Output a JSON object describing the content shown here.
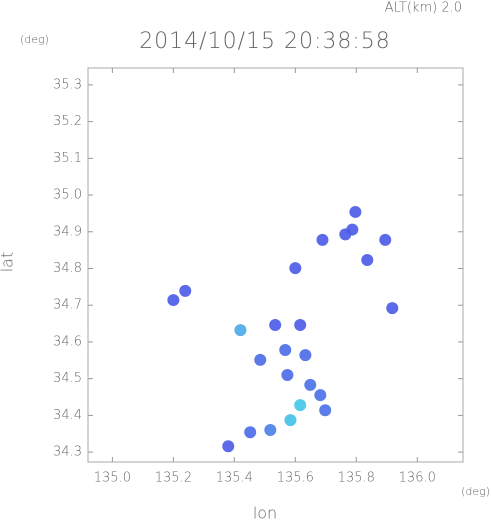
{
  "chart_data": {
    "type": "scatter",
    "title": "2014/10/15 20:38:58",
    "subtitle": "ALT(km) 2.0",
    "y_unit": "(deg)",
    "x_unit": "(deg)",
    "x_label": "lon",
    "y_label": "lat",
    "xlim": [
      134.92,
      136.15
    ],
    "ylim": [
      34.273,
      35.346
    ],
    "xticks": [
      {
        "value": 135,
        "label": "135.0"
      },
      135.2,
      135.4,
      135.6,
      135.8,
      {
        "value": 136,
        "label": "136.0"
      }
    ],
    "yticks": [
      34.3,
      34.4,
      34.5,
      34.6,
      34.7,
      34.8,
      34.9,
      {
        "value": 35,
        "label": "35.0"
      },
      35.1,
      35.2,
      35.3
    ],
    "x": [
      135.797,
      135.787,
      135.764,
      135.895,
      135.836,
      135.689,
      135.918,
      135.239,
      135.2,
      135.6,
      135.42,
      135.534,
      135.616,
      135.567,
      135.574,
      135.649,
      135.682,
      135.616,
      135.584,
      135.518,
      135.452,
      135.38,
      135.485,
      135.698,
      135.633
    ],
    "values": [
      34.954,
      34.906,
      34.893,
      34.878,
      34.823,
      34.878,
      34.692,
      34.739,
      34.714,
      34.801,
      34.632,
      34.646,
      34.646,
      34.578,
      34.51,
      34.483,
      34.455,
      34.428,
      34.387,
      34.36,
      34.354,
      34.316,
      34.551,
      34.414,
      34.564
    ],
    "colors": [
      "#4a5ae8",
      "#4a5ae8",
      "#4a5ae8",
      "#4a5ae8",
      "#4a5ae8",
      "#4a5ae8",
      "#4a5ae8",
      "#4a5ae8",
      "#4a5ae8",
      "#4a5ae8",
      "#4aa8e8",
      "#4a5ae8",
      "#4a5ae8",
      "#4a6ae8",
      "#4a6ae8",
      "#4a70e8",
      "#4a70e8",
      "#40c8e8",
      "#40c0e8",
      "#4a80e8",
      "#4a6ae8",
      "#4a5ae8",
      "#4a6ae8",
      "#4a70e8",
      "#4a6ae8"
    ]
  }
}
